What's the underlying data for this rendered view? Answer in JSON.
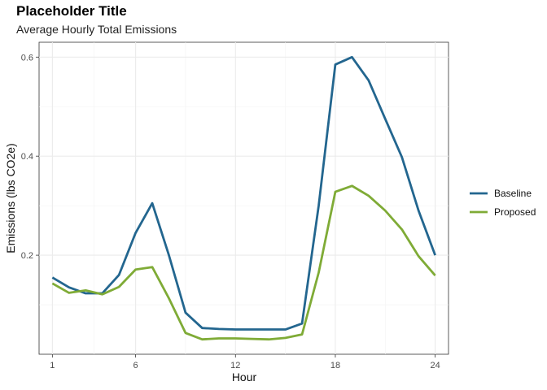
{
  "chart_data": {
    "type": "line",
    "title": "Placeholder Title",
    "subtitle": "Average Hourly Total Emissions",
    "xlabel": "Hour",
    "ylabel": "Emissions (lbs CO2e)",
    "xlim": [
      0.2,
      24.8
    ],
    "ylim": [
      0.0,
      0.63
    ],
    "x_ticks": [
      1,
      6,
      12,
      18,
      24
    ],
    "x_tick_labels": [
      "1",
      "6",
      "12",
      "18",
      "24"
    ],
    "y_ticks": [
      0.2,
      0.4,
      0.6
    ],
    "y_tick_labels": [
      "0.2",
      "0.4",
      "0.6"
    ],
    "grid": true,
    "legend_position": "right",
    "x": [
      1,
      2,
      3,
      4,
      5,
      6,
      7,
      8,
      9,
      10,
      11,
      12,
      13,
      14,
      15,
      16,
      17,
      18,
      19,
      20,
      21,
      22,
      23,
      24
    ],
    "series": [
      {
        "name": "Baseline",
        "color": "#23668f",
        "values": [
          0.155,
          0.135,
          0.123,
          0.123,
          0.16,
          0.245,
          0.305,
          0.2,
          0.084,
          0.053,
          0.051,
          0.05,
          0.05,
          0.05,
          0.05,
          0.062,
          0.3,
          0.585,
          0.6,
          0.553,
          0.475,
          0.398,
          0.29,
          0.2
        ]
      },
      {
        "name": "Proposed",
        "color": "#7fab36",
        "values": [
          0.143,
          0.124,
          0.129,
          0.121,
          0.136,
          0.171,
          0.176,
          0.113,
          0.043,
          0.03,
          0.032,
          0.032,
          0.031,
          0.03,
          0.033,
          0.04,
          0.165,
          0.328,
          0.34,
          0.32,
          0.29,
          0.252,
          0.198,
          0.159
        ]
      }
    ]
  }
}
